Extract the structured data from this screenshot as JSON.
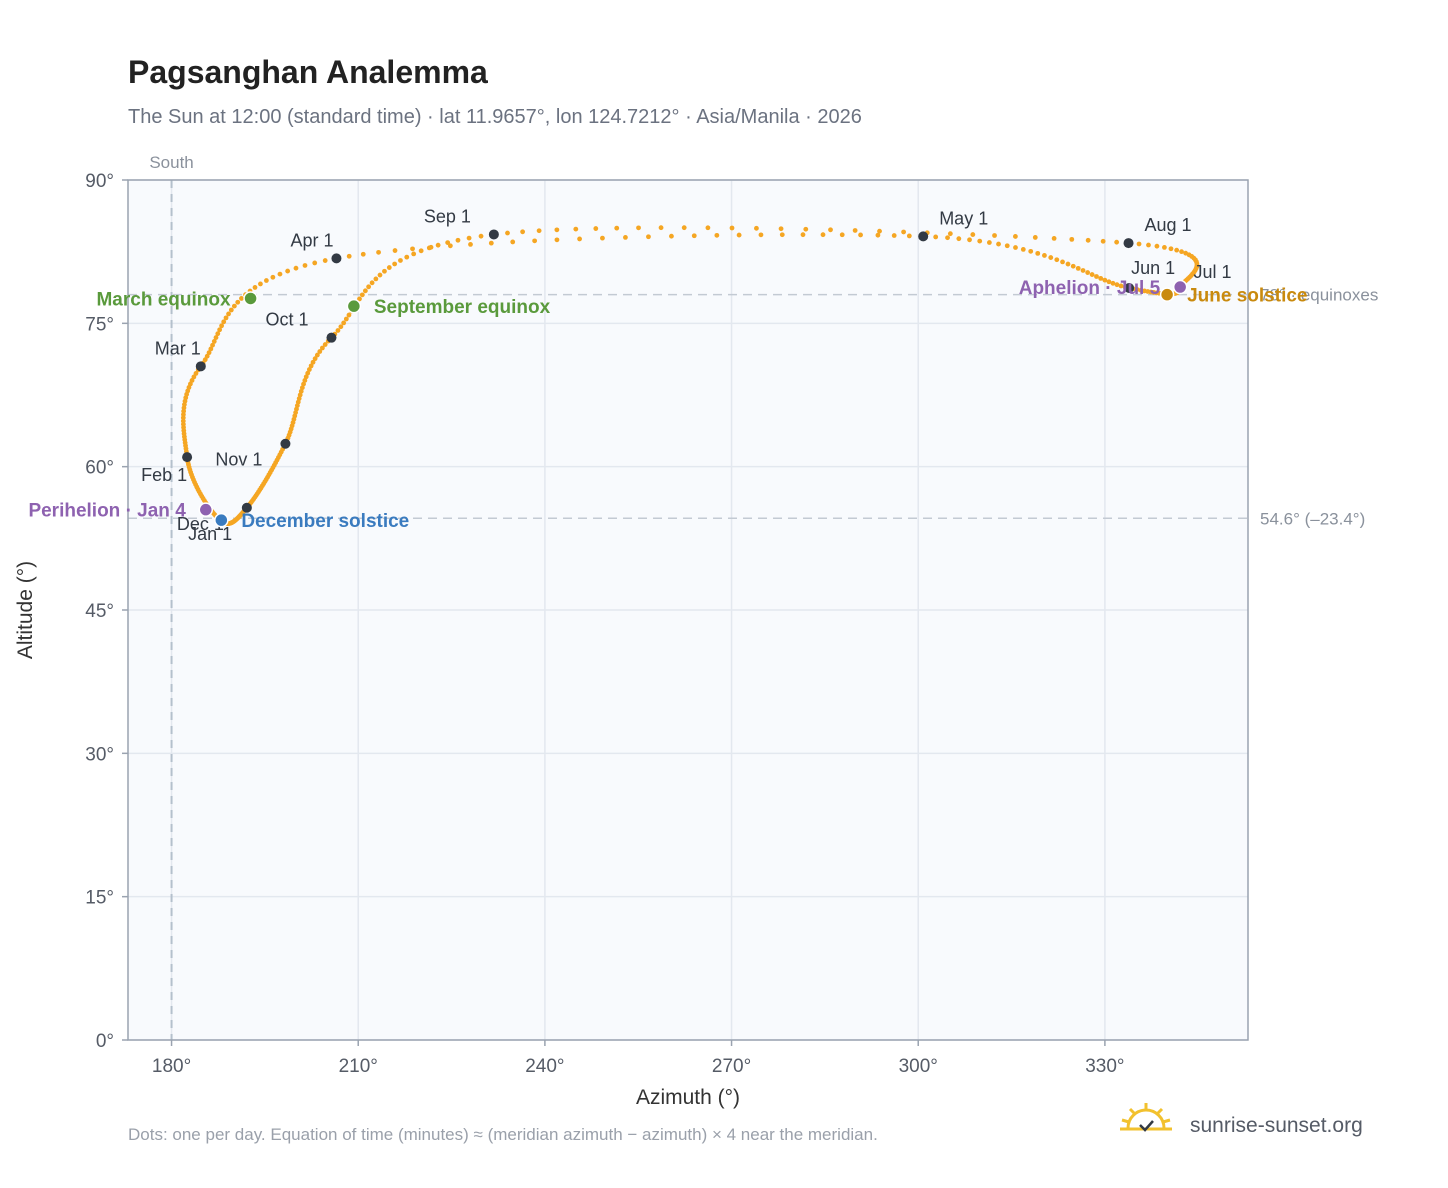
{
  "chart_data": {
    "type": "scatter",
    "title": "Pagsanghan Analemma",
    "subtitle": "The Sun at 12:00 (standard time) · lat 11.9657°, lon 124.7212° · Asia/Manila · 2026",
    "xlabel": "Azimuth (°)",
    "ylabel": "Altitude (°)",
    "xlim": [
      173,
      353
    ],
    "ylim": [
      0,
      90
    ],
    "x_ticks": [
      180,
      210,
      240,
      270,
      300,
      330
    ],
    "x_tick_labels": [
      "180°",
      "210°",
      "240°",
      "270°",
      "300°",
      "330°"
    ],
    "y_ticks": [
      0,
      15,
      30,
      45,
      60,
      75,
      90
    ],
    "y_tick_labels": [
      "0°",
      "15°",
      "30°",
      "45°",
      "60°",
      "75°",
      "90°"
    ],
    "grid": true,
    "series_color": "#f5a623",
    "meridian": {
      "azimuth": 180,
      "label": "South"
    },
    "reference_lines": [
      {
        "altitude": 78.0,
        "label": "78° · equinoxes"
      },
      {
        "altitude": 54.6,
        "label": "54.6° (–23.4°)"
      }
    ],
    "month_markers": [
      {
        "label": "Jan 1",
        "azimuth": 187.8,
        "altitude": 54.4
      },
      {
        "label": "Feb 1",
        "azimuth": 182.5,
        "altitude": 61.0
      },
      {
        "label": "Mar 1",
        "azimuth": 184.7,
        "altitude": 70.5
      },
      {
        "label": "Apr 1",
        "azimuth": 206.5,
        "altitude": 81.8
      },
      {
        "label": "May 1",
        "azimuth": 300.8,
        "altitude": 84.1
      },
      {
        "label": "Jun 1",
        "azimuth": 333.9,
        "altitude": 78.7
      },
      {
        "label": "Jul 1",
        "azimuth": 342.0,
        "altitude": 78.7
      },
      {
        "label": "Aug 1",
        "azimuth": 333.8,
        "altitude": 83.4
      },
      {
        "label": "Sep 1",
        "azimuth": 231.8,
        "altitude": 84.3
      },
      {
        "label": "Oct 1",
        "azimuth": 205.7,
        "altitude": 73.5
      },
      {
        "label": "Nov 1",
        "azimuth": 198.3,
        "altitude": 62.4
      },
      {
        "label": "Dec 1",
        "azimuth": 192.1,
        "altitude": 55.7
      }
    ],
    "events": [
      {
        "label": "March equinox",
        "azimuth": 192.7,
        "altitude": 77.6,
        "color": "#5a9a3c"
      },
      {
        "label": "September equinox",
        "azimuth": 209.3,
        "altitude": 76.8,
        "color": "#5a9a3c"
      },
      {
        "label": "June solstice",
        "azimuth": 340.0,
        "altitude": 78.0,
        "color": "#c98a0e"
      },
      {
        "label": "December solstice",
        "azimuth": 188.0,
        "altitude": 54.4,
        "color": "#3a7bbf"
      },
      {
        "label": "Perihelion · Jan 4",
        "azimuth": 185.5,
        "altitude": 55.5,
        "color": "#8e62b0"
      },
      {
        "label": "Aphelion · Jul 5",
        "azimuth": 342.1,
        "altitude": 78.8,
        "color": "#8e62b0"
      }
    ],
    "note": "Dots: one per day. Equation of time (minutes) ≈ (meridian azimuth − azimuth) × 4 near the meridian."
  },
  "footer": {
    "brand": "sunrise-sunset.org",
    "logo_icon": "sun-logo-icon"
  }
}
